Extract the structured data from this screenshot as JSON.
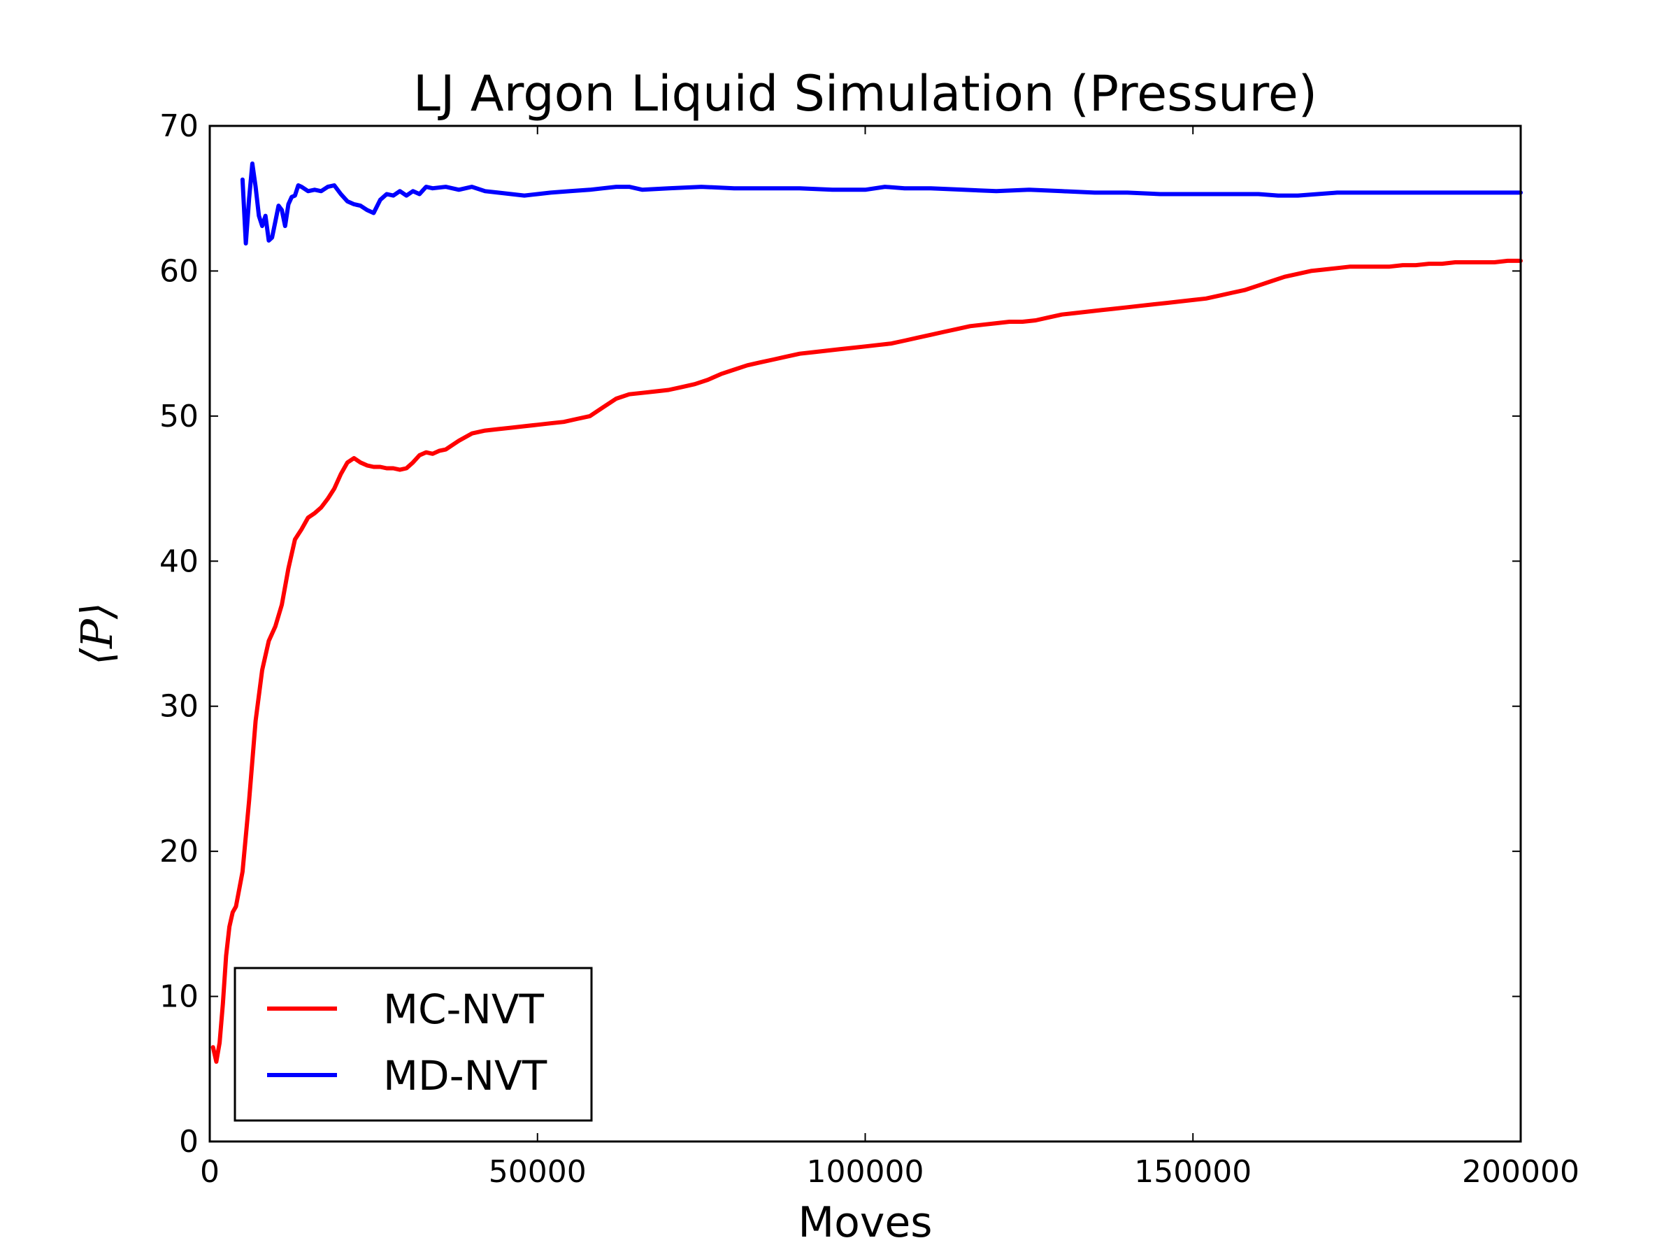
{
  "chart_data": {
    "type": "line",
    "title": "LJ Argon Liquid Simulation (Pressure)",
    "xlabel": "Moves",
    "ylabel": "⟨P⟩",
    "xlim": [
      0,
      200000
    ],
    "ylim": [
      0,
      70
    ],
    "xticks": [
      0,
      50000,
      100000,
      150000,
      200000
    ],
    "xtick_labels": [
      "0",
      "50000",
      "100000",
      "150000",
      "200000"
    ],
    "yticks": [
      0,
      10,
      20,
      30,
      40,
      50,
      60,
      70
    ],
    "ytick_labels": [
      "0",
      "10",
      "20",
      "30",
      "40",
      "50",
      "60",
      "70"
    ],
    "grid": false,
    "legend_position": "lower-left",
    "series": [
      {
        "name": "MC-NVT",
        "color": "#ff0000",
        "x": [
          500,
          1000,
          1500,
          2000,
          2500,
          3000,
          3500,
          4000,
          5000,
          6000,
          7000,
          8000,
          9000,
          10000,
          11000,
          12000,
          13000,
          14000,
          15000,
          16000,
          17000,
          18000,
          19000,
          20000,
          21000,
          22000,
          23000,
          24000,
          25000,
          26000,
          27000,
          28000,
          29000,
          30000,
          31000,
          32000,
          33000,
          34000,
          35000,
          36000,
          38000,
          40000,
          42000,
          44000,
          46000,
          48000,
          50000,
          52000,
          54000,
          56000,
          58000,
          60000,
          62000,
          64000,
          66000,
          68000,
          70000,
          72000,
          74000,
          76000,
          78000,
          80000,
          82000,
          84000,
          86000,
          88000,
          90000,
          92000,
          94000,
          96000,
          98000,
          100000,
          102000,
          104000,
          106000,
          108000,
          110000,
          112000,
          114000,
          116000,
          118000,
          120000,
          122000,
          124000,
          126000,
          128000,
          130000,
          132000,
          134000,
          136000,
          138000,
          140000,
          142000,
          144000,
          146000,
          148000,
          150000,
          152000,
          154000,
          156000,
          158000,
          160000,
          162000,
          164000,
          166000,
          168000,
          170000,
          172000,
          174000,
          176000,
          178000,
          180000,
          182000,
          184000,
          186000,
          188000,
          190000,
          192000,
          194000,
          196000,
          198000,
          200000
        ],
        "values": [
          6.5,
          5.5,
          6.8,
          9.5,
          12.8,
          14.8,
          15.8,
          16.2,
          18.6,
          23.5,
          29.0,
          32.5,
          34.5,
          35.5,
          37.0,
          39.5,
          41.5,
          42.2,
          43.0,
          43.3,
          43.7,
          44.3,
          45.0,
          46.0,
          46.8,
          47.1,
          46.8,
          46.6,
          46.5,
          46.5,
          46.4,
          46.4,
          46.3,
          46.4,
          46.8,
          47.3,
          47.5,
          47.4,
          47.6,
          47.7,
          48.3,
          48.8,
          49.0,
          49.1,
          49.2,
          49.3,
          49.4,
          49.5,
          49.6,
          49.8,
          50.0,
          50.6,
          51.2,
          51.5,
          51.6,
          51.7,
          51.8,
          52.0,
          52.2,
          52.5,
          52.9,
          53.2,
          53.5,
          53.7,
          53.9,
          54.1,
          54.3,
          54.4,
          54.5,
          54.6,
          54.7,
          54.8,
          54.9,
          55.0,
          55.2,
          55.4,
          55.6,
          55.8,
          56.0,
          56.2,
          56.3,
          56.4,
          56.5,
          56.5,
          56.6,
          56.8,
          57.0,
          57.1,
          57.2,
          57.3,
          57.4,
          57.5,
          57.6,
          57.7,
          57.8,
          57.9,
          58.0,
          58.1,
          58.3,
          58.5,
          58.7,
          59.0,
          59.3,
          59.6,
          59.8,
          60.0,
          60.1,
          60.2,
          60.3,
          60.3,
          60.3,
          60.3,
          60.4,
          60.4,
          60.5,
          60.5,
          60.6,
          60.6,
          60.6,
          60.6,
          60.7,
          60.7
        ]
      },
      {
        "name": "MD-NVT",
        "color": "#0000ff",
        "x": [
          5000,
          5500,
          6000,
          6500,
          7000,
          7500,
          8000,
          8500,
          9000,
          9500,
          10000,
          10500,
          11000,
          11500,
          12000,
          12500,
          13000,
          13500,
          14000,
          15000,
          16000,
          17000,
          18000,
          19000,
          20000,
          21000,
          22000,
          23000,
          24000,
          25000,
          26000,
          27000,
          28000,
          29000,
          30000,
          31000,
          32000,
          33000,
          34000,
          36000,
          38000,
          40000,
          42000,
          44000,
          46000,
          48000,
          50000,
          52000,
          55000,
          58000,
          60000,
          62000,
          64000,
          66000,
          70000,
          75000,
          80000,
          85000,
          90000,
          95000,
          100000,
          103000,
          106000,
          110000,
          115000,
          120000,
          125000,
          130000,
          135000,
          140000,
          145000,
          150000,
          155000,
          160000,
          163000,
          166000,
          169000,
          172000,
          176000,
          180000,
          185000,
          190000,
          195000,
          200000
        ],
        "values": [
          66.3,
          61.9,
          65.0,
          67.4,
          65.8,
          63.8,
          63.1,
          63.8,
          62.1,
          62.3,
          63.4,
          64.5,
          64.2,
          63.1,
          64.6,
          65.1,
          65.2,
          65.9,
          65.8,
          65.5,
          65.6,
          65.5,
          65.8,
          65.9,
          65.3,
          64.8,
          64.6,
          64.5,
          64.2,
          64.0,
          64.9,
          65.3,
          65.2,
          65.5,
          65.2,
          65.5,
          65.3,
          65.8,
          65.7,
          65.8,
          65.6,
          65.8,
          65.5,
          65.4,
          65.3,
          65.2,
          65.3,
          65.4,
          65.5,
          65.6,
          65.7,
          65.8,
          65.8,
          65.6,
          65.7,
          65.8,
          65.7,
          65.7,
          65.7,
          65.6,
          65.6,
          65.8,
          65.7,
          65.7,
          65.6,
          65.5,
          65.6,
          65.5,
          65.4,
          65.4,
          65.3,
          65.3,
          65.3,
          65.3,
          65.2,
          65.2,
          65.3,
          65.4,
          65.4,
          65.4,
          65.4,
          65.4,
          65.4,
          65.4
        ]
      }
    ]
  }
}
